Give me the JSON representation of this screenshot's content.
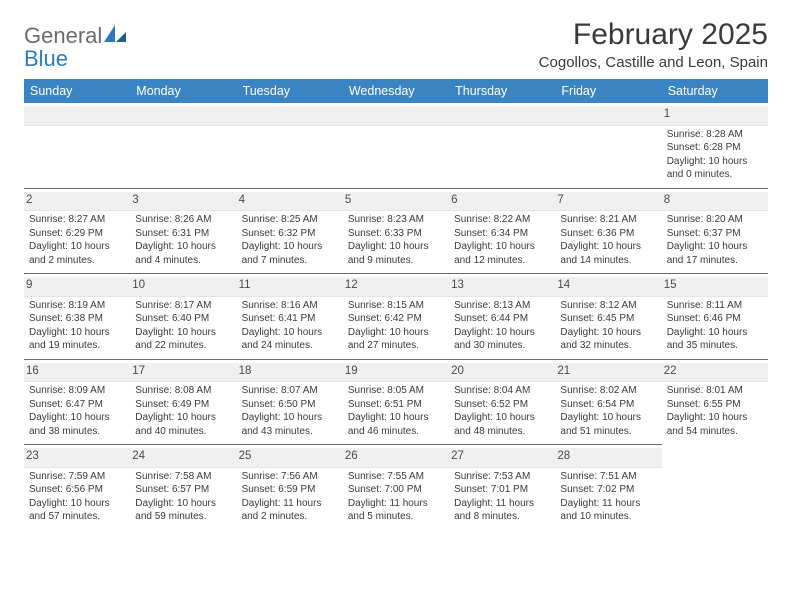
{
  "brand": {
    "word1": "General",
    "word2": "Blue"
  },
  "title": "February 2025",
  "location": "Cogollos, Castille and Leon, Spain",
  "colors": {
    "header_bg": "#3b84c4",
    "header_text": "#ffffff",
    "daynum_bg": "#f0f0f0",
    "body_text": "#3a3a3a",
    "logo_gray": "#6b6b6b",
    "logo_blue": "#2a7bbf",
    "rule": "#6a6a6a"
  },
  "typography": {
    "title_fontsize": 30,
    "location_fontsize": 15,
    "dayheader_fontsize": 12.5,
    "cell_fontsize": 10,
    "daynum_fontsize": 11.5
  },
  "day_names": [
    "Sunday",
    "Monday",
    "Tuesday",
    "Wednesday",
    "Thursday",
    "Friday",
    "Saturday"
  ],
  "weeks": [
    [
      null,
      null,
      null,
      null,
      null,
      null,
      {
        "n": "1",
        "sunrise": "8:28 AM",
        "sunset": "6:28 PM",
        "dl_h": "10",
        "dl_m": "0"
      }
    ],
    [
      {
        "n": "2",
        "sunrise": "8:27 AM",
        "sunset": "6:29 PM",
        "dl_h": "10",
        "dl_m": "2"
      },
      {
        "n": "3",
        "sunrise": "8:26 AM",
        "sunset": "6:31 PM",
        "dl_h": "10",
        "dl_m": "4"
      },
      {
        "n": "4",
        "sunrise": "8:25 AM",
        "sunset": "6:32 PM",
        "dl_h": "10",
        "dl_m": "7"
      },
      {
        "n": "5",
        "sunrise": "8:23 AM",
        "sunset": "6:33 PM",
        "dl_h": "10",
        "dl_m": "9"
      },
      {
        "n": "6",
        "sunrise": "8:22 AM",
        "sunset": "6:34 PM",
        "dl_h": "10",
        "dl_m": "12"
      },
      {
        "n": "7",
        "sunrise": "8:21 AM",
        "sunset": "6:36 PM",
        "dl_h": "10",
        "dl_m": "14"
      },
      {
        "n": "8",
        "sunrise": "8:20 AM",
        "sunset": "6:37 PM",
        "dl_h": "10",
        "dl_m": "17"
      }
    ],
    [
      {
        "n": "9",
        "sunrise": "8:19 AM",
        "sunset": "6:38 PM",
        "dl_h": "10",
        "dl_m": "19"
      },
      {
        "n": "10",
        "sunrise": "8:17 AM",
        "sunset": "6:40 PM",
        "dl_h": "10",
        "dl_m": "22"
      },
      {
        "n": "11",
        "sunrise": "8:16 AM",
        "sunset": "6:41 PM",
        "dl_h": "10",
        "dl_m": "24"
      },
      {
        "n": "12",
        "sunrise": "8:15 AM",
        "sunset": "6:42 PM",
        "dl_h": "10",
        "dl_m": "27"
      },
      {
        "n": "13",
        "sunrise": "8:13 AM",
        "sunset": "6:44 PM",
        "dl_h": "10",
        "dl_m": "30"
      },
      {
        "n": "14",
        "sunrise": "8:12 AM",
        "sunset": "6:45 PM",
        "dl_h": "10",
        "dl_m": "32"
      },
      {
        "n": "15",
        "sunrise": "8:11 AM",
        "sunset": "6:46 PM",
        "dl_h": "10",
        "dl_m": "35"
      }
    ],
    [
      {
        "n": "16",
        "sunrise": "8:09 AM",
        "sunset": "6:47 PM",
        "dl_h": "10",
        "dl_m": "38"
      },
      {
        "n": "17",
        "sunrise": "8:08 AM",
        "sunset": "6:49 PM",
        "dl_h": "10",
        "dl_m": "40"
      },
      {
        "n": "18",
        "sunrise": "8:07 AM",
        "sunset": "6:50 PM",
        "dl_h": "10",
        "dl_m": "43"
      },
      {
        "n": "19",
        "sunrise": "8:05 AM",
        "sunset": "6:51 PM",
        "dl_h": "10",
        "dl_m": "46"
      },
      {
        "n": "20",
        "sunrise": "8:04 AM",
        "sunset": "6:52 PM",
        "dl_h": "10",
        "dl_m": "48"
      },
      {
        "n": "21",
        "sunrise": "8:02 AM",
        "sunset": "6:54 PM",
        "dl_h": "10",
        "dl_m": "51"
      },
      {
        "n": "22",
        "sunrise": "8:01 AM",
        "sunset": "6:55 PM",
        "dl_h": "10",
        "dl_m": "54"
      }
    ],
    [
      {
        "n": "23",
        "sunrise": "7:59 AM",
        "sunset": "6:56 PM",
        "dl_h": "10",
        "dl_m": "57"
      },
      {
        "n": "24",
        "sunrise": "7:58 AM",
        "sunset": "6:57 PM",
        "dl_h": "10",
        "dl_m": "59"
      },
      {
        "n": "25",
        "sunrise": "7:56 AM",
        "sunset": "6:59 PM",
        "dl_h": "11",
        "dl_m": "2"
      },
      {
        "n": "26",
        "sunrise": "7:55 AM",
        "sunset": "7:00 PM",
        "dl_h": "11",
        "dl_m": "5"
      },
      {
        "n": "27",
        "sunrise": "7:53 AM",
        "sunset": "7:01 PM",
        "dl_h": "11",
        "dl_m": "8"
      },
      {
        "n": "28",
        "sunrise": "7:51 AM",
        "sunset": "7:02 PM",
        "dl_h": "11",
        "dl_m": "10"
      },
      null
    ]
  ],
  "labels": {
    "sunrise_prefix": "Sunrise: ",
    "sunset_prefix": "Sunset: ",
    "daylight_prefix": "Daylight: ",
    "hours_word": " hours",
    "and_word": "and ",
    "minutes_word": " minutes."
  }
}
